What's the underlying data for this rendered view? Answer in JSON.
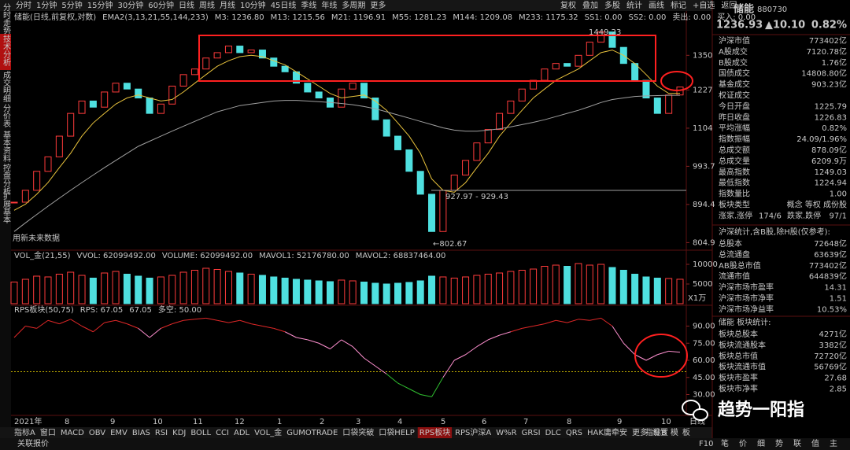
{
  "toolbar": {
    "periods": [
      "分时",
      "1分钟",
      "5分钟",
      "15分钟",
      "30分钟",
      "60分钟",
      "日线",
      "周线",
      "月线",
      "10分钟",
      "45日线",
      "季线",
      "年线",
      "多周期",
      "更多"
    ],
    "active": "日线",
    "tools": [
      "复权",
      "叠加",
      "多股",
      "统计",
      "画线",
      "标记",
      "+自选",
      "返回"
    ]
  },
  "side_tabs": {
    "items": [
      "分时走势",
      "技术分析",
      "成交明细",
      "分价表",
      "基本资料",
      "控盘分析",
      "扩展基本"
    ],
    "active": "技术分析"
  },
  "price_chart": {
    "header": [
      {
        "text": "储能(日线,前复权,对数)",
        "color": "#d0d0d0"
      },
      {
        "text": "EMA2(3,13,21,55,144,233)",
        "color": "#d0d0d0"
      },
      {
        "text": "M3: 1236.80",
        "color": "#ffffff"
      },
      {
        "text": "M13: 1215.56",
        "color": "#e8c23c"
      },
      {
        "text": "M21: 1196.91",
        "color": "#e040e0"
      },
      {
        "text": "M55: 1281.23",
        "color": "#30d030"
      },
      {
        "text": "M144: 1209.08",
        "color": "#c8c8c8"
      },
      {
        "text": "M233: 1175.32",
        "color": "#4a6ee0"
      },
      {
        "text": "SS1: 0.00",
        "color": "#d0d0d0"
      },
      {
        "text": "SS2: 0.00",
        "color": "#d0d0d0"
      },
      {
        "text": "卖出: 0.00",
        "color": "#d0d0d0"
      },
      {
        "text": "买入: 0.00",
        "color": "#d0d0d0"
      }
    ],
    "log_scale": true,
    "ylim": [
      790,
      1480
    ],
    "yticks": [
      1350,
      1227,
      1104,
      993.7,
      894.4,
      804.9
    ],
    "closes": [
      900,
      930,
      980,
      1020,
      1080,
      1150,
      1190,
      1170,
      1220,
      1250,
      1230,
      1200,
      1150,
      1180,
      1240,
      1280,
      1300,
      1340,
      1360,
      1385,
      1360,
      1370,
      1340,
      1310,
      1290,
      1250,
      1220,
      1200,
      1170,
      1230,
      1250,
      1200,
      1130,
      1080,
      1040,
      980,
      920,
      830,
      930,
      970,
      1010,
      1060,
      1100,
      1150,
      1190,
      1230,
      1260,
      1300,
      1320,
      1310,
      1350,
      1400,
      1440,
      1380,
      1320,
      1260,
      1200,
      1150,
      1210,
      1236.93
    ],
    "ma13": {
      "color": "#e8c23c",
      "values": [
        880,
        895,
        920,
        950,
        990,
        1030,
        1080,
        1120,
        1150,
        1180,
        1200,
        1210,
        1200,
        1190,
        1195,
        1220,
        1250,
        1280,
        1310,
        1330,
        1345,
        1350,
        1345,
        1330,
        1315,
        1290,
        1265,
        1240,
        1215,
        1200,
        1205,
        1210,
        1190,
        1160,
        1120,
        1080,
        1030,
        960,
        930,
        925,
        950,
        990,
        1030,
        1080,
        1120,
        1160,
        1200,
        1230,
        1260,
        1280,
        1300,
        1330,
        1360,
        1370,
        1350,
        1320,
        1280,
        1240,
        1215,
        1215.56
      ]
    },
    "ma144": {
      "color": "#a0a0a0",
      "values": [
        830,
        850,
        870,
        890,
        910,
        930,
        950,
        970,
        990,
        1010,
        1030,
        1050,
        1065,
        1080,
        1095,
        1110,
        1125,
        1140,
        1155,
        1165,
        1175,
        1180,
        1185,
        1190,
        1192,
        1192,
        1190,
        1188,
        1185,
        1182,
        1178,
        1172,
        1165,
        1155,
        1145,
        1135,
        1125,
        1115,
        1105,
        1098,
        1095,
        1095,
        1098,
        1102,
        1108,
        1115,
        1122,
        1130,
        1140,
        1150,
        1160,
        1172,
        1185,
        1195,
        1200,
        1205,
        1207,
        1208,
        1209,
        1209.08
      ]
    },
    "annotations": {
      "high": "1449.23",
      "range": "927.97 - 929.43",
      "low": "←802.67",
      "note": "用新未来数据"
    },
    "up_color": "#ff3b3b",
    "down_color": "#4fe0e0"
  },
  "volume_chart": {
    "header": [
      {
        "text": "VOL_金(21,55)",
        "color": "#d0d0d0"
      },
      {
        "text": "VVOL: 62099492.00",
        "color": "#ffffff"
      },
      {
        "text": "VOLUME: 62099492.00",
        "color": "#e8c23c"
      },
      {
        "text": "MAVOL1: 52176780.00",
        "color": "#e8c23c"
      },
      {
        "text": "MAVOL2: 68837464.00",
        "color": "#e040e0"
      }
    ],
    "ylim": [
      0,
      11000
    ],
    "yticks": [
      10000,
      5000
    ],
    "unit": "X1万",
    "values": [
      5500,
      6200,
      7000,
      6800,
      7500,
      8000,
      7200,
      6500,
      7800,
      8200,
      7500,
      7000,
      6500,
      6800,
      7200,
      8000,
      8500,
      9000,
      8700,
      8200,
      7800,
      7500,
      7200,
      6800,
      6500,
      6200,
      6000,
      5800,
      5600,
      6000,
      5800,
      5500,
      5200,
      5000,
      5200,
      5400,
      5800,
      7000,
      6800,
      6500,
      6800,
      7200,
      7500,
      7800,
      8200,
      8500,
      8800,
      9500,
      9800,
      9500,
      10200,
      9800,
      10000,
      9200,
      8500,
      7500,
      6800,
      6500,
      6400,
      6209.9
    ]
  },
  "rps_chart": {
    "header": [
      {
        "text": "RPS板块(50,75)",
        "color": "#d0d0d0"
      },
      {
        "text": "RPS: 67.05",
        "color": "#ff4040"
      },
      {
        "text": "67.05",
        "color": "#ff80c0"
      },
      {
        "text": "多空: 50.00",
        "color": "#e8c23c"
      }
    ],
    "ylim": [
      20,
      100
    ],
    "yticks": [
      {
        "value": 90,
        "label": "90.00"
      },
      {
        "value": 75,
        "label": "75.00"
      },
      {
        "value": 60,
        "label": "60.00"
      },
      {
        "value": 45,
        "label": "45.00"
      },
      {
        "value": 30,
        "label": "30.00"
      }
    ],
    "midline": 50,
    "values": [
      80,
      90,
      88,
      95,
      92,
      96,
      90,
      85,
      93,
      95,
      92,
      88,
      80,
      88,
      92,
      95,
      96,
      97,
      95,
      93,
      95,
      92,
      90,
      88,
      85,
      80,
      78,
      75,
      70,
      78,
      72,
      62,
      55,
      48,
      40,
      35,
      30,
      28,
      45,
      60,
      65,
      72,
      78,
      82,
      85,
      88,
      90,
      92,
      95,
      93,
      96,
      95,
      97,
      90,
      75,
      65,
      60,
      65,
      68,
      67.05
    ]
  },
  "time_axis": [
    "2021年",
    "8",
    "9",
    "10",
    "11",
    "12",
    "1",
    "2",
    "3",
    "4",
    "5",
    "6",
    "7",
    "8",
    "9",
    "10"
  ],
  "period_label": "日线",
  "bottom_tabs": {
    "items": [
      "指标A",
      "窗口",
      "MACD",
      "OBV",
      "EMV",
      "BIAS",
      "RSI",
      "KDJ",
      "BOLL",
      "CCI",
      "ADL",
      "VOL_金",
      "GUMOTRADE",
      "口袋突破",
      "口袋HELP",
      "RPS板块",
      "RPS沪深A",
      "W%R",
      "GRSI",
      "DLC",
      "QRS",
      "HAK庸牵安",
      "更多",
      "设置"
    ],
    "active": "RPS板块",
    "right": [
      "指标B",
      "模",
      "板"
    ]
  },
  "status": {
    "left": "关联报价",
    "right": "F10",
    "panel_tabs": [
      "笔",
      "价",
      "细",
      "势",
      "联",
      "值",
      "主"
    ]
  },
  "quote": {
    "name": "储能",
    "code": "880730",
    "price": "1236.93",
    "change": "▲10.10",
    "pct": "0.82%"
  },
  "stats": [
    {
      "label": "沪深市值",
      "value": "773402亿",
      "color": "#e0e0e0"
    },
    {
      "label": "A股成交",
      "value": "7120.78亿",
      "color": "#e8c23c"
    },
    {
      "label": "B股成交",
      "value": "1.76亿",
      "color": "#e8c23c"
    },
    {
      "label": "国债成交",
      "value": "14808.80亿",
      "color": "#e8c23c"
    },
    {
      "label": "基金成交",
      "value": "903.23亿",
      "color": "#e8c23c"
    },
    {
      "label": "权证成交"
    },
    {
      "label": "今日开盘",
      "value": "1225.79",
      "color": "#30d030"
    },
    {
      "label": "昨日收盘",
      "value": "1226.83",
      "color": "#e0e0e0"
    },
    {
      "label": "平均涨幅",
      "value": "0.82%",
      "color": "#ff3b3b"
    },
    {
      "label": "指数振幅",
      "value": "24.09/1.96%",
      "color": "#e0e0e0"
    },
    {
      "label": "总成交额",
      "value": "878.09亿",
      "color": "#e8c23c"
    },
    {
      "label": "总成交量",
      "value": "6209.9万",
      "color": "#e8c23c"
    },
    {
      "label": "最高指数",
      "value": "1249.03",
      "color": "#ff3b3b"
    },
    {
      "label": "最低指数",
      "value": "1224.94",
      "color": "#ff3b3b"
    },
    {
      "label": "指数量比",
      "value": "1.00",
      "color": "#e0e0e0"
    },
    {
      "label": "板块类型",
      "value": "概念 等权 成份股",
      "color": "#e8c23c"
    }
  ],
  "breadth": {
    "up_label": "涨家.涨停",
    "up": "174/6",
    "down_label": "跌家.跌停",
    "down": "97/1"
  },
  "market_title": "沪深统计,含B股,除H股(仅参考):",
  "market": [
    {
      "label": "总股本",
      "value": "72648亿"
    },
    {
      "label": "总流通盘",
      "value": "63639亿"
    },
    {
      "label": "AB股总市值",
      "value": "773402亿"
    },
    {
      "label": "流通市值",
      "value": "644839亿"
    },
    {
      "label": "沪深市场市盈率",
      "value": "14.31"
    },
    {
      "label": "沪深市场市净率",
      "value": "1.51"
    },
    {
      "label": "沪深市场净益率",
      "value": "10.53%"
    }
  ],
  "sector_title": "储能 板块统计:",
  "sector": [
    {
      "label": "板块总股本",
      "value": "4271亿"
    },
    {
      "label": "板块流通股本",
      "value": "3382亿"
    },
    {
      "label": "板块总市值",
      "value": "72720亿"
    },
    {
      "label": "板块流通市值",
      "value": "56769亿"
    },
    {
      "label": "板块市盈率",
      "value": "27.68"
    },
    {
      "label": "板块市净率",
      "value": "2.85"
    }
  ],
  "watermark": "趋势一阳指"
}
